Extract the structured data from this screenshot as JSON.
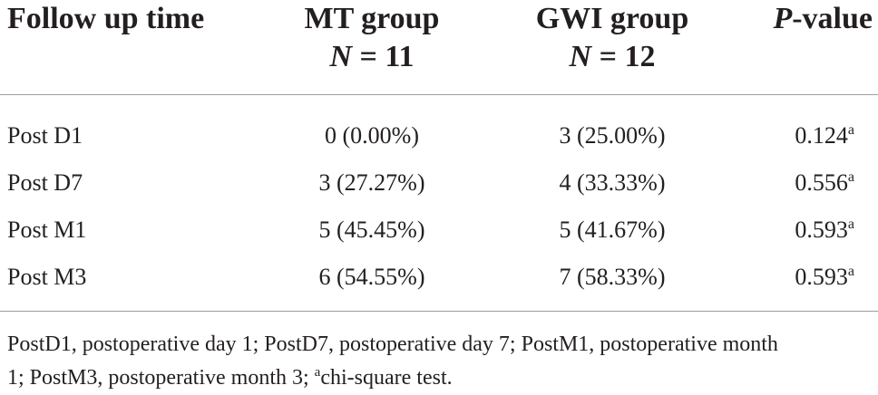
{
  "table": {
    "headers": {
      "follow_up": "Follow up time",
      "mt_group": "MT group",
      "mt_n_symbol": "N",
      "mt_n_value": " = 11",
      "gwi_group": "GWI group",
      "gwi_n_symbol": "N",
      "gwi_n_value": " = 12",
      "p_symbol": "P",
      "p_suffix": "-value"
    },
    "rows": [
      {
        "label": "Post D1",
        "mt": "0 (0.00%)",
        "gwi": "3 (25.00%)",
        "p": "0.124",
        "p_note": "a"
      },
      {
        "label": "Post D7",
        "mt": "3 (27.27%)",
        "gwi": "4 (33.33%)",
        "p": "0.556",
        "p_note": "a"
      },
      {
        "label": "Post M1",
        "mt": "5 (45.45%)",
        "gwi": "5 (41.67%)",
        "p": "0.593",
        "p_note": "a"
      },
      {
        "label": "Post M3",
        "mt": "6 (54.55%)",
        "gwi": "7 (58.33%)",
        "p": "0.593",
        "p_note": "a"
      }
    ]
  },
  "footnote": {
    "line1": "PostD1, postoperative day 1; PostD7, postoperative day 7; PostM1, postoperative month",
    "line2_pre": "1; PostM3, postoperative month 3; ",
    "line2_sup": "a",
    "line2_post": "chi-square test."
  }
}
